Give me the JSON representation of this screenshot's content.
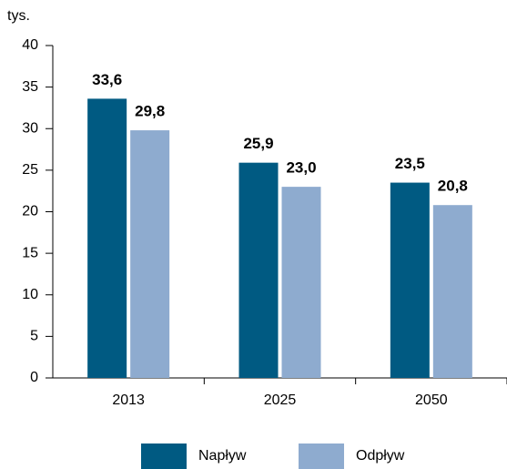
{
  "chart_data": {
    "type": "bar",
    "y_label": "tys.",
    "categories": [
      "2013",
      "2025",
      "2050"
    ],
    "series": [
      {
        "name": "Napływ",
        "color": "#005a82",
        "values": [
          33.6,
          25.9,
          23.5
        ],
        "value_labels": [
          "33,6",
          "25,9",
          "23,5"
        ]
      },
      {
        "name": "Odpływ",
        "color": "#8eabcf",
        "values": [
          29.8,
          23.0,
          20.8
        ],
        "value_labels": [
          "29,8",
          "23,0",
          "20,8"
        ]
      }
    ],
    "ylim": [
      0,
      40
    ],
    "yticks": [
      0,
      5,
      10,
      15,
      20,
      25,
      30,
      35,
      40
    ],
    "legend": "bottom"
  }
}
